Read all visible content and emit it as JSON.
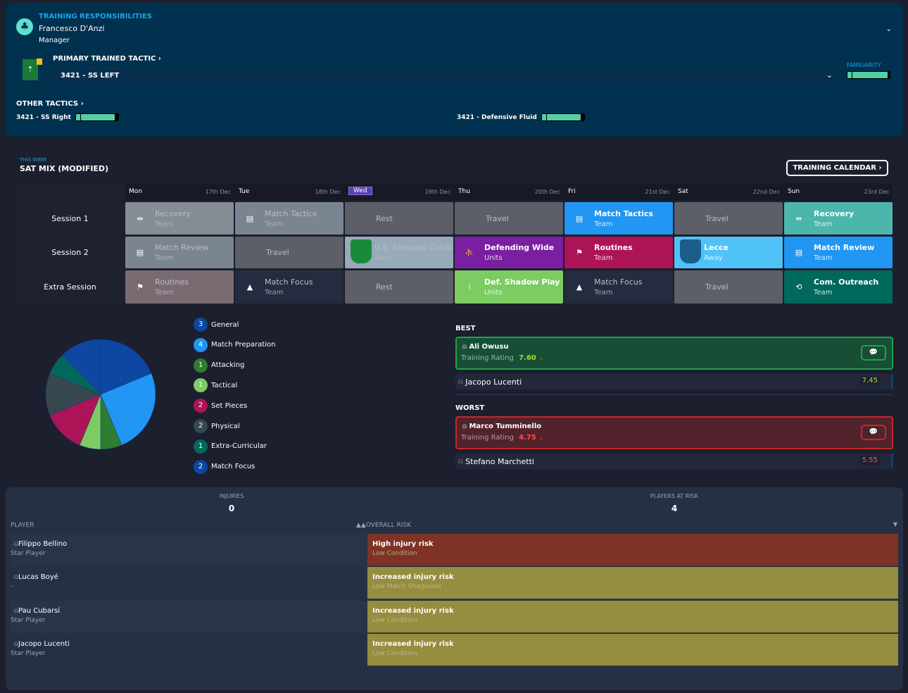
{
  "responsibilities": {
    "heading": "TRAINING RESPONSIBILITIES",
    "name": "Francesco D'Anzi",
    "role": "Manager"
  },
  "primary_tactic": {
    "label": "PRIMARY TRAINED TACTIC ›",
    "value": "3421 - SS LEFT",
    "familiarity_label": "FAMILIARITY",
    "familiarity": 0.9
  },
  "other_tactics": {
    "label": "OTHER TACTICS ›",
    "items": [
      {
        "name": "3421 - SS Right",
        "familiarity": 0.9
      },
      {
        "name": "3421 - Defensive Fluid",
        "familiarity": 0.9
      }
    ]
  },
  "week": {
    "label": "THIS WEEK",
    "title": "SAT MIX (MODIFIED)",
    "calendar_button": "TRAINING CALENDAR ›"
  },
  "days": [
    {
      "day": "Mon",
      "date": "17th Dec"
    },
    {
      "day": "Tue",
      "date": "18th Dec"
    },
    {
      "day": "Wed",
      "date": "19th Dec",
      "current": true
    },
    {
      "day": "Thu",
      "date": "20th Dec"
    },
    {
      "day": "Fri",
      "date": "21st Dec"
    },
    {
      "day": "Sat",
      "date": "22nd Dec"
    },
    {
      "day": "Sun",
      "date": "23rd Dec"
    }
  ],
  "session_labels": [
    "Session 1",
    "Session 2",
    "Extra Session"
  ],
  "sessions": [
    [
      {
        "t": "Recovery",
        "s": "Team",
        "icon": "dumbbell-icon",
        "c": "#868c93",
        "dim": true
      },
      {
        "t": "Match Tactics",
        "s": "Team",
        "icon": "clipboard-icon",
        "c": "#7b8591",
        "dim": true
      },
      {
        "t": "Rest",
        "c": "#5c5f67"
      },
      {
        "t": "Travel",
        "c": "#5c5f67"
      },
      {
        "t": "Match Tactics",
        "s": "Team",
        "icon": "clipboard-icon",
        "c": "#2196f3"
      },
      {
        "t": "Travel",
        "c": "#5c5f67"
      },
      {
        "t": "Recovery",
        "s": "Team",
        "icon": "dumbbell-icon",
        "c": "#4db6ac"
      }
    ],
    [
      {
        "t": "Match Review",
        "s": "Team",
        "icon": "clipboard-icon",
        "c": "#7b8591",
        "dim": true
      },
      {
        "t": "Travel",
        "c": "#5c5f67"
      },
      {
        "t": "U.S. Sassuolo Calcio",
        "s": "Away",
        "icon": "sassuolo-crest-icon",
        "c": "#97aab8",
        "dim": true,
        "crest": "#1a8a3a"
      },
      {
        "t": "Defending Wide",
        "s": "Units",
        "icon": "tackle-icon",
        "c": "#7b1fa2"
      },
      {
        "t": "Routines",
        "s": "Team",
        "icon": "flag-icon",
        "c": "#ad1457"
      },
      {
        "t": "Lecce",
        "s": "Away",
        "icon": "lecce-crest-icon",
        "c": "#4fc3f7",
        "crest": "#1b5e8a"
      },
      {
        "t": "Match Review",
        "s": "Team",
        "icon": "clipboard-icon",
        "c": "#2196f3"
      }
    ],
    [
      {
        "t": "Routines",
        "s": "Team",
        "icon": "flag-icon",
        "c": "#7a6b73",
        "dim": true
      },
      {
        "t": "Match Focus",
        "s": "Team",
        "icon": "cone-icon",
        "c": "#262c3f",
        "dim": true
      },
      {
        "t": "Rest",
        "c": "#5c5f67"
      },
      {
        "t": "Def. Shadow Play",
        "s": "Units",
        "icon": "shadow-icon",
        "c": "#7ccc63"
      },
      {
        "t": "Match Focus",
        "s": "Team",
        "icon": "cone-icon",
        "c": "#262c3f",
        "dim": true
      },
      {
        "t": "Travel",
        "c": "#5c5f67"
      },
      {
        "t": "Com. Outreach",
        "s": "Team",
        "icon": "handshake-icon",
        "c": "#00695c"
      }
    ]
  ],
  "chart_data": {
    "type": "pie",
    "title": "",
    "categories": [
      "General",
      "Match Preparation",
      "Attacking",
      "Tactical",
      "Set Pieces",
      "Physical",
      "Extra-Curricular",
      "Match Focus"
    ],
    "values": [
      3,
      4,
      1,
      1,
      2,
      2,
      1,
      2
    ],
    "colors": [
      "#0d47a1",
      "#2196f3",
      "#2e7d32",
      "#7ccc63",
      "#ad1457",
      "#37474f",
      "#00695c",
      "#0d47a1"
    ]
  },
  "best": {
    "label": "BEST",
    "top": {
      "name": "Ali Owusu",
      "rating_label": "Training Rating",
      "rating": "7.60"
    },
    "second": {
      "name": "Jacopo Lucenti",
      "rating": "7.45"
    }
  },
  "worst": {
    "label": "WORST",
    "top": {
      "name": "Marco Tumminello",
      "rating_label": "Training Rating",
      "rating": "4.75"
    },
    "second": {
      "name": "Stefano Marchetti",
      "rating": "5.55"
    }
  },
  "injuries": {
    "injuries_label": "INJURIES",
    "injuries": "0",
    "risk_label": "PLAYERS AT RISK",
    "risk": "4",
    "col_player": "PLAYER",
    "col_risk": "▲▲OVERALL RISK",
    "rows": [
      {
        "name": "Filippo Bellino",
        "sub": "Star Player",
        "risk": "High injury risk",
        "reason": "Low Condition",
        "c": "#7e3326"
      },
      {
        "name": "Lucas Boyé",
        "sub": "-",
        "risk": "Increased injury risk",
        "reason": "Low Match Sharpness",
        "c": "#958d3f"
      },
      {
        "name": "Pau Cubarsí",
        "sub": "Star Player",
        "risk": "Increased injury risk",
        "reason": "Low Condition",
        "c": "#958d3f"
      },
      {
        "name": "Jacopo Lucenti",
        "sub": "Star Player",
        "risk": "Increased injury risk",
        "reason": "Low Condition",
        "c": "#958d3f"
      }
    ]
  }
}
